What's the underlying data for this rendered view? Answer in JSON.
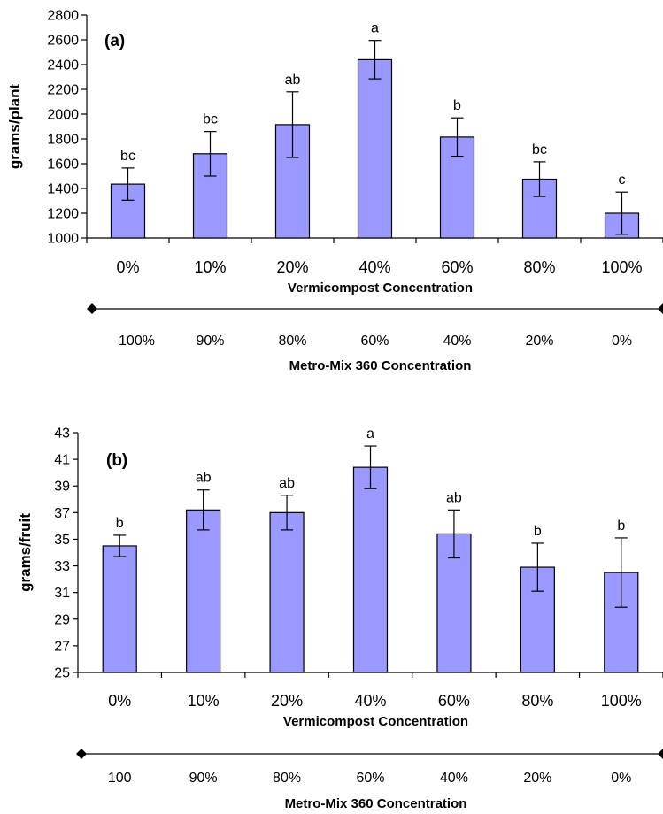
{
  "chart_data": [
    {
      "type": "bar",
      "panel_label": "(a)",
      "ylabel": "grams/plant",
      "xlabel": "Vermicompost Concentration",
      "ylim": [
        1000,
        2800
      ],
      "yticks": [
        "1000",
        "1200",
        "1400",
        "1600",
        "1800",
        "2000",
        "2200",
        "2400",
        "2600",
        "2800"
      ],
      "ytick_values": [
        1000,
        1200,
        1400,
        1600,
        1800,
        2000,
        2200,
        2400,
        2600,
        2800
      ],
      "categories": [
        "0%",
        "10%",
        "20%",
        "40%",
        "60%",
        "80%",
        "100%"
      ],
      "values": [
        1435,
        1680,
        1915,
        2440,
        1815,
        1475,
        1200
      ],
      "error": [
        130,
        180,
        265,
        155,
        155,
        140,
        170
      ],
      "significance": [
        "bc",
        "bc",
        "ab",
        "a",
        "b",
        "bc",
        "c"
      ],
      "bar_color": "#9999ff",
      "secondary_axis": {
        "label": "Metro-Mix 360 Concentration",
        "ticks": [
          "100%",
          "90%",
          "80%",
          "60%",
          "40%",
          "20%",
          "0%"
        ]
      }
    },
    {
      "type": "bar",
      "panel_label": "(b)",
      "ylabel": "grams/fruit",
      "xlabel": "Vermicompost Concentration",
      "ylim": [
        25,
        43
      ],
      "yticks": [
        "25",
        "27",
        "29",
        "31",
        "33",
        "35",
        "37",
        "39",
        "41",
        "43"
      ],
      "ytick_values": [
        25,
        27,
        29,
        31,
        33,
        35,
        37,
        39,
        41,
        43
      ],
      "categories": [
        "0%",
        "10%",
        "20%",
        "40%",
        "60%",
        "80%",
        "100%"
      ],
      "values": [
        34.5,
        37.2,
        37.0,
        40.4,
        35.4,
        32.9,
        32.5
      ],
      "error": [
        0.8,
        1.5,
        1.3,
        1.6,
        1.8,
        1.8,
        2.6
      ],
      "significance": [
        "b",
        "ab",
        "ab",
        "a",
        "ab",
        "b",
        "b"
      ],
      "bar_color": "#9999ff",
      "secondary_axis": {
        "label": "Metro-Mix 360 Concentration",
        "ticks": [
          "100",
          "90%",
          "80%",
          "60%",
          "40%",
          "20%",
          "0%"
        ]
      }
    }
  ]
}
